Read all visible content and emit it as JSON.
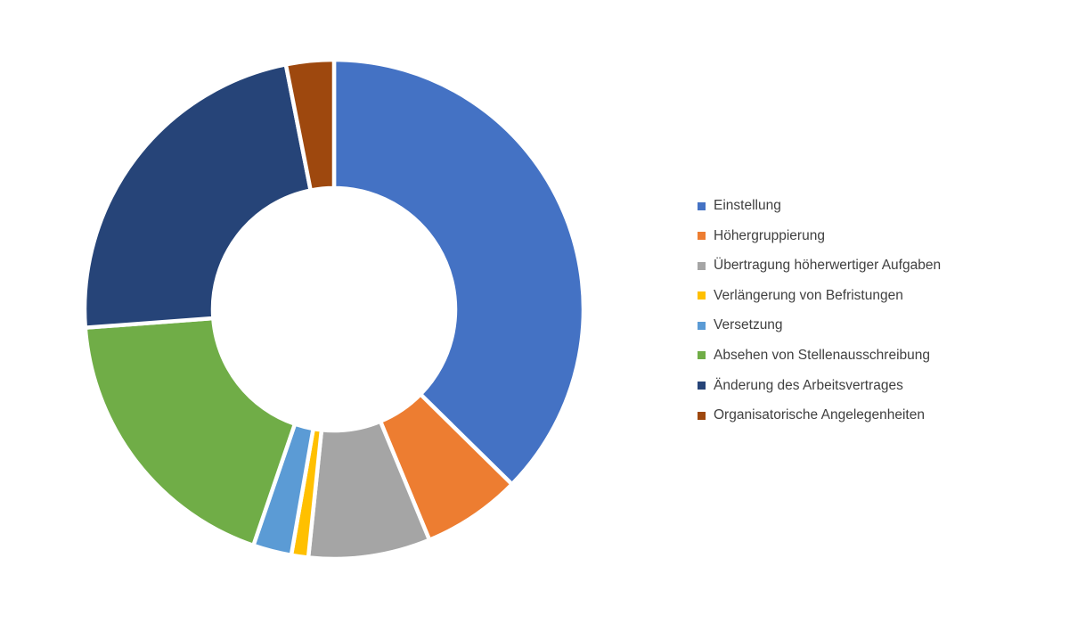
{
  "figure": {
    "background_color": "#ffffff"
  },
  "chart_data": {
    "type": "pie",
    "subtype": "donut",
    "title": "",
    "legend_position": "right",
    "start_angle_deg": 0,
    "inner_radius_ratio": 0.5,
    "segment_gap_color": "#ffffff",
    "legend_text_color": "#404040",
    "segments": [
      {
        "label": "Einstellung",
        "value": 37.4,
        "color": "#4472C4"
      },
      {
        "label": "Höhergruppierung",
        "value": 6.4,
        "color": "#ED7D31"
      },
      {
        "label": "Übertragung höherwertiger Aufgaben",
        "value": 7.9,
        "color": "#A5A5A5"
      },
      {
        "label": "Verlängerung von Befristungen",
        "value": 1.1,
        "color": "#FFC000"
      },
      {
        "label": "Versetzung",
        "value": 2.5,
        "color": "#5B9BD5"
      },
      {
        "label": "Absehen von Stellenausschreibung",
        "value": 18.6,
        "color": "#70AD47"
      },
      {
        "label": "Änderung des Arbeitsvertrages",
        "value": 23.1,
        "color": "#264478"
      },
      {
        "label": "Organisatorische Angelegenheiten",
        "value": 3.1,
        "color": "#9E480E"
      }
    ]
  }
}
